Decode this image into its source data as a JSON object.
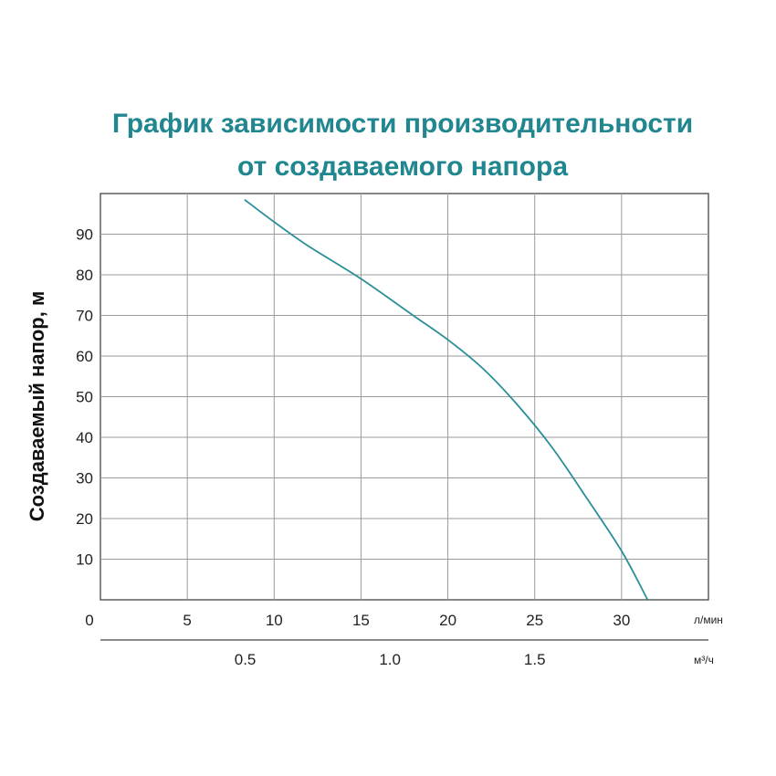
{
  "chart_data": {
    "type": "line",
    "title": "График зависимости производительности",
    "title_line2": "от создаваемого напора",
    "ylabel": "Создаваемый напор, м",
    "x_unit": "л/мин",
    "x2_unit": "м³/ч",
    "x_ticks": [
      "0",
      "5",
      "10",
      "15",
      "20",
      "25",
      "30"
    ],
    "x2_ticks": [
      "0.5",
      "1.0",
      "1.5"
    ],
    "y_ticks": [
      "10",
      "20",
      "30",
      "40",
      "50",
      "60",
      "70",
      "80",
      "90"
    ],
    "xlim": [
      0,
      35
    ],
    "ylim": [
      0,
      100
    ],
    "grid": true,
    "series": [
      {
        "color": "#2a8f97",
        "x": [
          8.3,
          10,
          12,
          15,
          18,
          20,
          22,
          24,
          26,
          28,
          30,
          31.5
        ],
        "y": [
          98.5,
          93,
          87,
          79,
          70,
          64,
          57,
          48,
          37.5,
          25,
          12,
          0
        ]
      }
    ]
  },
  "colors": {
    "title": "#20868f",
    "curve": "#2a8f97",
    "grid": "#9a9a9a",
    "axis": "#444444"
  }
}
